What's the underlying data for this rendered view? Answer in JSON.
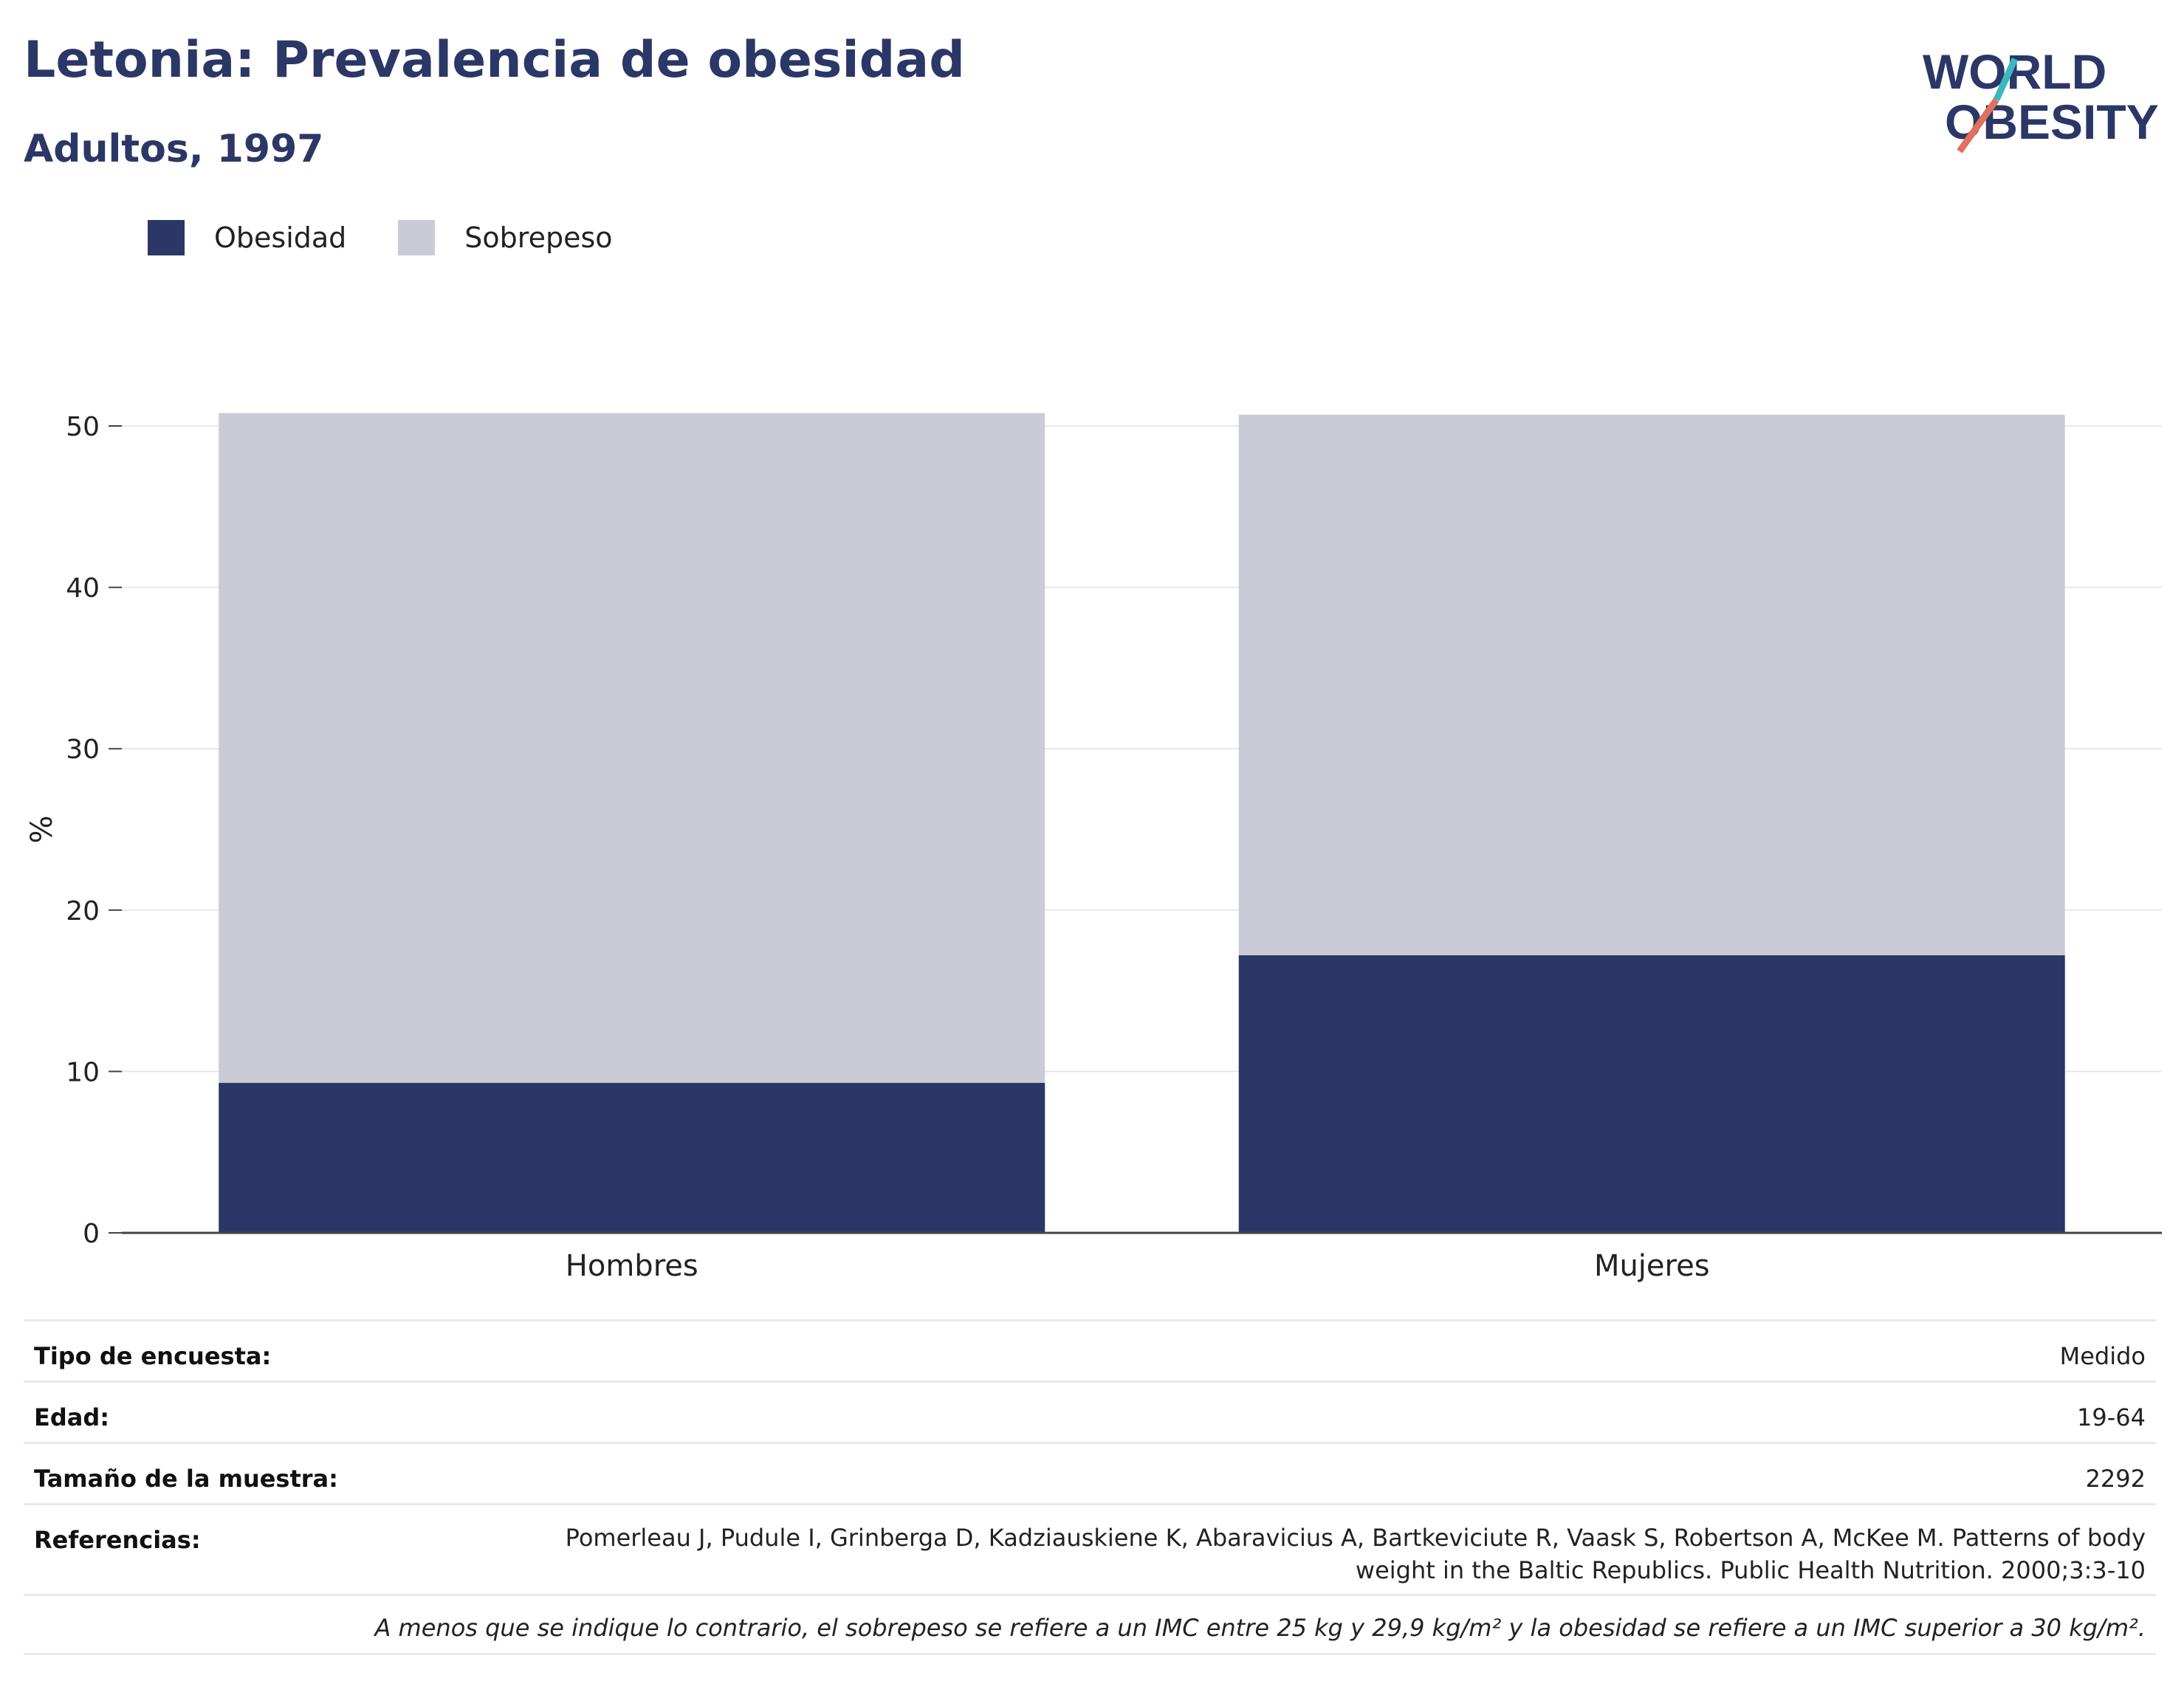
{
  "header": {
    "title": "Letonia: Prevalencia de obesidad",
    "subtitle": "Adultos, 1997",
    "logo_line1": "WORLD",
    "logo_line2": "OBESITY"
  },
  "colors": {
    "obesity": "#2b3766",
    "overweight": "#cacbd7",
    "title": "#2b3766",
    "logo_teal": "#3bb8bf",
    "logo_coral": "#e2705f"
  },
  "chart_data": {
    "type": "bar",
    "stacked": true,
    "categories": [
      "Hombres",
      "Mujeres"
    ],
    "series": [
      {
        "name": "Obesidad",
        "values": [
          9.3,
          17.2
        ]
      },
      {
        "name": "Sobrepeso",
        "values": [
          41.5,
          33.5
        ]
      }
    ],
    "ylabel": "%",
    "ylim": [
      0,
      50
    ],
    "yticks": [
      0,
      10,
      20,
      30,
      40,
      50
    ],
    "grid": true,
    "legend": "top-left"
  },
  "info": {
    "survey_label": "Tipo de encuesta:",
    "survey_value": "Medido",
    "age_label": "Edad:",
    "age_value": "19-64",
    "sample_label": "Tamaño de la muestra:",
    "sample_value": "2292",
    "ref_label": "Referencias:",
    "ref_value": "Pomerleau J, Pudule I, Grinberga D, Kadziauskiene K, Abaravicius A, Bartkeviciute R, Vaask S, Robertson A, McKee M. Patterns of body weight in the Baltic Republics. Public Health Nutrition. 2000;3:3-10",
    "note": "A menos que se indique lo contrario, el sobrepeso se refiere a un IMC entre 25 kg y 29,9 kg/m² y la obesidad se refiere a un IMC superior a 30 kg/m²."
  }
}
